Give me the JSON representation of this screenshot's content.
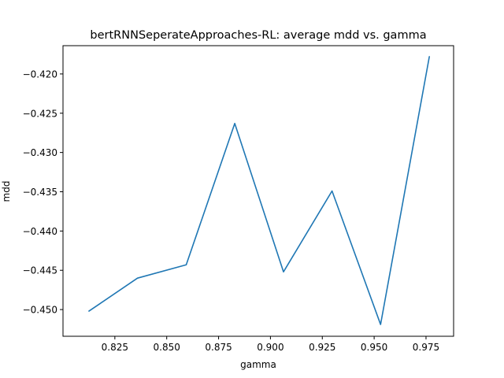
{
  "chart_data": {
    "type": "line",
    "title": "bertRNNSeperateApproaches-RL: average mdd vs. gamma",
    "xlabel": "gamma",
    "ylabel": "mdd",
    "xlim": [
      0.8,
      0.9883
    ],
    "ylim": [
      -0.4534,
      -0.4164
    ],
    "x_ticks": [
      0.825,
      0.85,
      0.875,
      0.9,
      0.925,
      0.95,
      0.975
    ],
    "x_tick_labels": [
      "0.825",
      "0.850",
      "0.875",
      "0.900",
      "0.925",
      "0.950",
      "0.975"
    ],
    "y_ticks": [
      -0.45,
      -0.445,
      -0.44,
      -0.435,
      -0.43,
      -0.425,
      -0.42
    ],
    "y_tick_labels": [
      "−0.450",
      "−0.445",
      "−0.440",
      "−0.435",
      "−0.430",
      "−0.425",
      "−0.420"
    ],
    "grid": false,
    "series": [
      {
        "color": "#1f77b4",
        "x": [
          0.8125,
          0.8359,
          0.8594,
          0.8828,
          0.9063,
          0.9297,
          0.9531,
          0.9766
        ],
        "y": [
          -0.4502,
          -0.446,
          -0.4443,
          -0.4263,
          -0.4452,
          -0.4349,
          -0.4519,
          -0.4178
        ]
      }
    ]
  }
}
